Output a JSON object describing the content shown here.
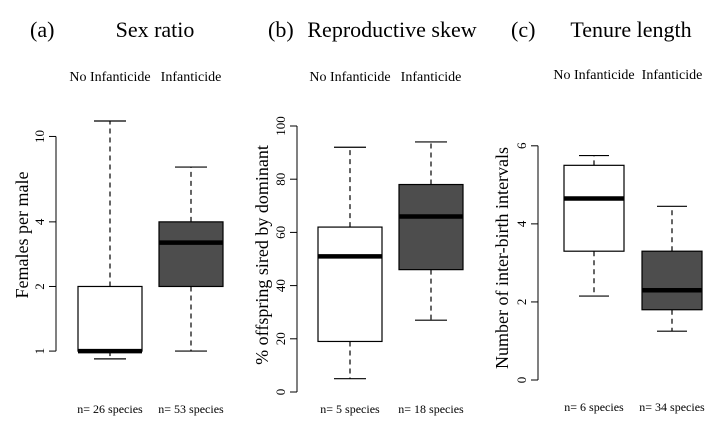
{
  "chart_data": [
    {
      "type": "box",
      "panel_label": "(a)",
      "title": "Sex ratio",
      "ylabel": "Females per male",
      "y_scale": "log",
      "ylim": [
        0.88,
        13
      ],
      "yticks": [
        1,
        2,
        4,
        10
      ],
      "ytick_labels": [
        "1",
        "2",
        "4",
        "10"
      ],
      "categories": [
        "No Infanticide",
        "Infanticide"
      ],
      "n_labels": [
        "n= 26 species",
        "n= 53 species"
      ],
      "fill_colors": [
        "#ffffff",
        "#4d4d4d"
      ],
      "boxes": [
        {
          "whisker_low": 0.92,
          "q1": 1.0,
          "median": 1.0,
          "q3": 2.0,
          "whisker_high": 11.8
        },
        {
          "whisker_low": 1.0,
          "q1": 2.0,
          "median": 3.2,
          "q3": 4.0,
          "whisker_high": 7.2
        }
      ]
    },
    {
      "type": "box",
      "panel_label": "(b)",
      "title": "Reproductive skew",
      "ylabel": "% offspring sired by dominant",
      "ylim": [
        0,
        100
      ],
      "yticks": [
        0,
        20,
        40,
        60,
        80,
        100
      ],
      "ytick_labels": [
        "0",
        "20",
        "40",
        "60",
        "80",
        "100"
      ],
      "categories": [
        "No Infanticide",
        "Infanticide"
      ],
      "n_labels": [
        "n= 5 species",
        "n= 18 species"
      ],
      "fill_colors": [
        "#ffffff",
        "#4d4d4d"
      ],
      "boxes": [
        {
          "whisker_low": 5,
          "q1": 19,
          "median": 51,
          "q3": 62,
          "whisker_high": 92
        },
        {
          "whisker_low": 27,
          "q1": 46,
          "median": 66,
          "q3": 78,
          "whisker_high": 94
        }
      ]
    },
    {
      "type": "box",
      "panel_label": "(c)",
      "title": "Tenure length",
      "ylabel": "Number of inter-birth intervals",
      "ylim": [
        0,
        6.2
      ],
      "yticks": [
        0,
        2,
        4,
        6
      ],
      "ytick_labels": [
        "0",
        "2",
        "4",
        "6"
      ],
      "categories": [
        "No Infanticide",
        "Infanticide"
      ],
      "n_labels": [
        "n= 6 species",
        "n= 34 species"
      ],
      "fill_colors": [
        "#ffffff",
        "#4d4d4d"
      ],
      "boxes": [
        {
          "whisker_low": 2.15,
          "q1": 3.3,
          "median": 4.65,
          "q3": 5.5,
          "whisker_high": 5.75
        },
        {
          "whisker_low": 1.25,
          "q1": 1.8,
          "median": 2.3,
          "q3": 3.3,
          "whisker_high": 4.45
        }
      ]
    }
  ]
}
